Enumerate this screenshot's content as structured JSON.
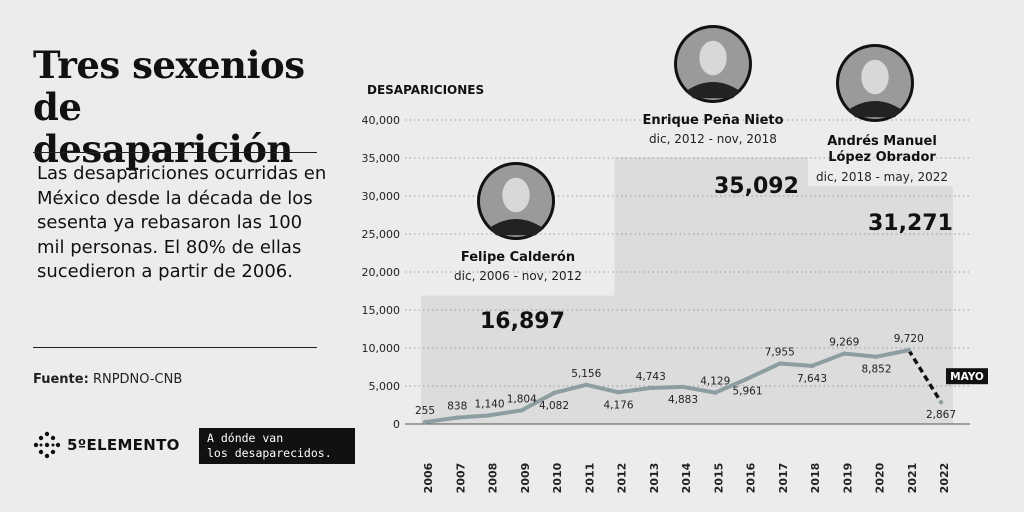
{
  "title": "Tres sexenios de desaparición",
  "description": "Las desapariciones ocurridas en México desde la década de los sesenta ya rebasaron las 100 mil personas. El 80% de ellas sucedieron a partir de 2006.",
  "source": {
    "label": "Fuente:",
    "value": "RNPDNO-CNB"
  },
  "logos": {
    "quinto_elemento": "5ºELEMENTO",
    "adonde_line1": "A dónde van",
    "adonde_line2": "los desaparecidos."
  },
  "chart_data": {
    "type": "line",
    "ylabel": "DESAPARICIONES",
    "ylim": [
      0,
      40000
    ],
    "y_ticks": [
      "0",
      "5,000",
      "10,000",
      "15,000",
      "20,000",
      "25,000",
      "30,000",
      "35,000",
      "40,000"
    ],
    "x": [
      "2006",
      "2007",
      "2008",
      "2009",
      "2010",
      "2011",
      "2012",
      "2013",
      "2014",
      "2015",
      "2016",
      "2017",
      "2018",
      "2019",
      "2020",
      "2021",
      "2022"
    ],
    "values": [
      255,
      838,
      1140,
      1804,
      4082,
      5156,
      4176,
      4743,
      4883,
      4129,
      5961,
      7955,
      7643,
      9269,
      8852,
      9720,
      2867
    ],
    "value_labels": [
      "255",
      "838",
      "1,140",
      "1,804",
      "4,082",
      "5,156",
      "4,176",
      "4,743",
      "4,883",
      "4,129",
      "5,961",
      "7,955",
      "7,643",
      "9,269",
      "8,852",
      "9,720",
      "2,867"
    ],
    "annotation": "MAYO",
    "presidencies": [
      {
        "name_lines": [
          "Felipe Calderón"
        ],
        "dates": "dic, 2006 - nov, 2012",
        "total": 16897,
        "total_label": "16,897"
      },
      {
        "name_lines": [
          "Enrique Peña Nieto"
        ],
        "dates": "dic, 2012 - nov, 2018",
        "total": 35092,
        "total_label": "35,092"
      },
      {
        "name_lines": [
          "Andrés Manuel",
          "López Obrador"
        ],
        "dates": "dic, 2018 - may, 2022",
        "total": 31271,
        "total_label": "31,271"
      }
    ],
    "colors": {
      "line": "#8c9ea0",
      "line_dashed": "#111111",
      "band": "#d9d9d9",
      "grid": "#555555"
    }
  }
}
